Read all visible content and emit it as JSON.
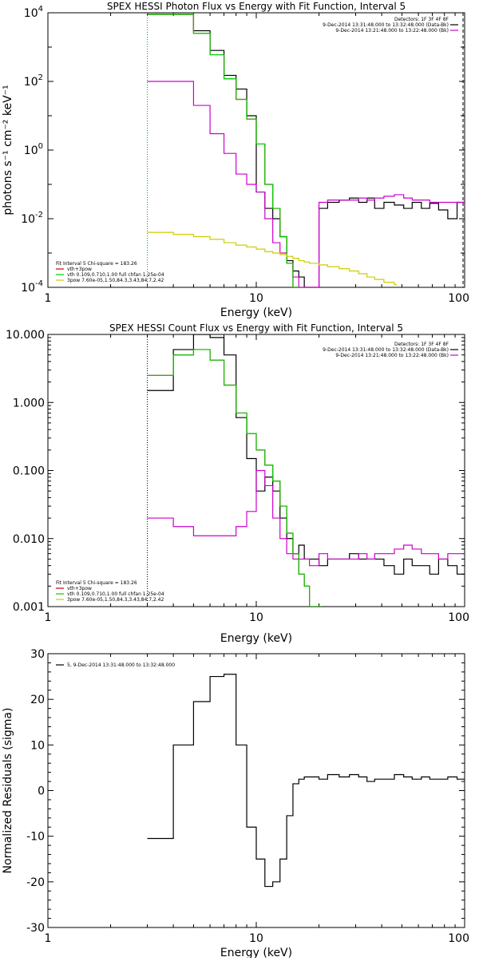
{
  "chart_data": [
    {
      "type": "line",
      "title": "SPEX HESSI Photon Flux vs Energy with Fit Function, Interval 5",
      "xlabel": "Energy (keV)",
      "ylabel": "photons s⁻¹ cm⁻² keV⁻¹",
      "xscale": "log",
      "yscale": "log",
      "xlim": [
        1,
        100
      ],
      "ylim": [
        0.0001,
        10000
      ],
      "x_ticks": [
        "1",
        "10",
        "100"
      ],
      "y_ticks": [
        {
          "base": "10",
          "exp": "-4"
        },
        {
          "base": "10",
          "exp": "-2"
        },
        {
          "base": "10",
          "exp": "0"
        },
        {
          "base": "10",
          "exp": "2"
        },
        {
          "base": "10",
          "exp": "4"
        }
      ],
      "legend_top_right": [
        {
          "text": "Detectors: 1F 3F 4F 8F",
          "color": "#000000",
          "line": false
        },
        {
          "text": "9-Dec-2014 13:31:48.000 to 13:32:48.000 (Data-Bk)",
          "color": "#000000",
          "line": true
        },
        {
          "text": "9-Dec-2014 13:21:48.000 to 13:22:48.000 (Bk)",
          "color": "#cc00cc",
          "line": true
        }
      ],
      "legend_bottom_left": [
        {
          "text": "Fit Interval 5   Chi-square = 183.26",
          "color": "#000000",
          "line": false
        },
        {
          "text": "vth+3pow",
          "color": "#cc0000",
          "line": true
        },
        {
          "text": "vth 0.109,0.710,1.00  full chfan 1.25e-04",
          "color": "#00cc00",
          "line": true
        },
        {
          "text": "3pow 7.60e-05,1.50,84.3,3.43,84.7,2.42",
          "color": "#cccc00",
          "line": true
        }
      ],
      "series": [
        {
          "name": "9-Dec-2014 13:31:48.000 to 13:32:48.000 (Data-Bk)",
          "color": "#000000",
          "x": [
            3,
            4,
            5,
            6,
            7,
            8,
            9,
            10,
            11,
            12,
            13,
            14,
            15,
            16,
            17,
            18,
            20,
            22,
            25,
            28,
            31,
            34,
            37,
            41,
            46,
            51,
            56,
            62,
            68,
            75,
            83,
            92,
            100
          ],
          "y": [
            9000,
            9000,
            3000,
            800,
            150,
            60,
            10,
            0.06,
            0.02,
            0.01,
            0.003,
            0.0006,
            0.0003,
            0.0002,
            0.0001,
            0.0001,
            0.02,
            0.03,
            0.035,
            0.04,
            0.03,
            0.04,
            0.02,
            0.03,
            0.025,
            0.02,
            0.03,
            0.02,
            0.028,
            0.018,
            0.01,
            0.03,
            0.03
          ]
        },
        {
          "name": "9-Dec-2014 13:21:48.000 to 13:22:48.000 (Bk)",
          "color": "#cc00cc",
          "x": [
            3,
            4,
            5,
            6,
            7,
            8,
            9,
            10,
            11,
            12,
            13,
            14,
            15,
            16,
            17,
            18,
            20,
            22,
            25,
            28,
            31,
            34,
            37,
            41,
            46,
            51,
            56,
            62,
            68,
            75,
            83,
            92,
            100
          ],
          "y": [
            100,
            100,
            20,
            3,
            0.8,
            0.2,
            0.1,
            0.06,
            0.01,
            0.002,
            0.001,
            0.0005,
            0.0002,
            0.0001,
            0.0001,
            0.0001,
            0.03,
            0.035,
            0.035,
            0.035,
            0.04,
            0.035,
            0.04,
            0.045,
            0.05,
            0.04,
            0.035,
            0.035,
            0.03,
            0.03,
            0.03,
            0.03,
            0.03
          ]
        },
        {
          "name": "vth+3pow",
          "color": "#cc0000",
          "x": [
            3,
            4,
            5,
            6,
            7,
            8,
            9,
            10,
            11,
            12,
            13,
            14,
            15,
            16
          ],
          "y": [
            9000,
            9000,
            2500,
            600,
            120,
            30,
            8,
            1.5,
            0.1,
            0.02,
            0.003,
            0.0005,
            0.0001,
            8e-05
          ]
        },
        {
          "name": "vth 0.109,0.710,1.00  full chfan 1.25e-04",
          "color": "#00cc00",
          "x": [
            3,
            4,
            5,
            6,
            7,
            8,
            9,
            10,
            11,
            12,
            13,
            14,
            15,
            16
          ],
          "y": [
            9000,
            9000,
            2500,
            600,
            120,
            30,
            8,
            1.5,
            0.1,
            0.02,
            0.003,
            0.0005,
            0.0001,
            8e-05
          ]
        },
        {
          "name": "3pow 7.60e-05,1.50,84.3,3.43,84.7,2.42",
          "color": "#cccc00",
          "x": [
            3,
            4,
            5,
            6,
            7,
            8,
            9,
            10,
            11,
            12,
            13,
            14,
            15,
            16,
            17,
            18,
            20,
            22,
            25,
            28,
            31,
            34,
            37,
            41,
            46
          ],
          "y": [
            0.004,
            0.0035,
            0.003,
            0.0025,
            0.002,
            0.0017,
            0.0015,
            0.0013,
            0.0011,
            0.001,
            0.0009,
            0.0008,
            0.0007,
            0.0006,
            0.00055,
            0.0005,
            0.00045,
            0.0004,
            0.00035,
            0.0003,
            0.00025,
            0.0002,
            0.00017,
            0.00014,
            0.00012
          ]
        }
      ]
    },
    {
      "type": "line",
      "title": "SPEX HESSI Count Flux vs Energy with Fit Function, Interval 5",
      "xlabel": "Energy (keV)",
      "ylabel": "",
      "xscale": "log",
      "yscale": "log",
      "xlim": [
        1,
        100
      ],
      "ylim": [
        0.001,
        10
      ],
      "x_ticks": [
        "1",
        "10",
        "100"
      ],
      "y_ticks": [
        "0.001",
        "0.010",
        "0.100",
        "1.000",
        "10.000"
      ],
      "legend_top_right": [
        {
          "text": "Detectors: 1F 3F 4F 8F",
          "color": "#000000",
          "line": false
        },
        {
          "text": "9-Dec-2014 13:31:48.000 to 13:32:48.000 (Data-Bk)",
          "color": "#000000",
          "line": true
        },
        {
          "text": "9-Dec-2014 13:21:48.000 to 13:22:48.000 (Bk)",
          "color": "#cc00cc",
          "line": true
        }
      ],
      "legend_bottom_left": [
        {
          "text": "Fit Interval 5   Chi-square = 183.26",
          "color": "#000000",
          "line": false
        },
        {
          "text": "vth+3pow",
          "color": "#cc0000",
          "line": true
        },
        {
          "text": "vth 0.109,0.710,1.00  full chfan 1.25e-04",
          "color": "#00cc00",
          "line": true
        },
        {
          "text": "3pow 7.60e-05,1.50,84.3,3.43,84.7,2.42",
          "color": "#cccc00",
          "line": true
        }
      ],
      "series": [
        {
          "name": "9-Dec-2014 13:31:48.000 to 13:32:48.000 (Data-Bk)",
          "color": "#000000",
          "x": [
            3,
            4,
            5,
            6,
            7,
            8,
            9,
            10,
            11,
            12,
            13,
            14,
            15,
            16,
            17,
            18,
            20,
            22,
            25,
            28,
            31,
            34,
            37,
            41,
            46,
            51,
            56,
            62,
            68,
            75,
            83,
            92,
            100
          ],
          "y": [
            1.5,
            6.0,
            10.0,
            9.0,
            5.0,
            0.6,
            0.15,
            0.05,
            0.08,
            0.05,
            0.02,
            0.01,
            0.006,
            0.008,
            0.005,
            0.005,
            0.004,
            0.005,
            0.005,
            0.006,
            0.005,
            0.005,
            0.005,
            0.004,
            0.003,
            0.005,
            0.004,
            0.004,
            0.003,
            0.005,
            0.004,
            0.003,
            0.003
          ]
        },
        {
          "name": "9-Dec-2014 13:21:48.000 to 13:22:48.000 (Bk)",
          "color": "#cc00cc",
          "x": [
            3,
            4,
            5,
            6,
            7,
            8,
            9,
            10,
            11,
            12,
            13,
            14,
            15,
            16,
            17,
            18,
            20,
            22,
            25,
            28,
            31,
            34,
            37,
            41,
            46,
            51,
            56,
            62,
            68,
            75,
            83,
            92,
            100
          ],
          "y": [
            0.02,
            0.015,
            0.011,
            0.011,
            0.011,
            0.015,
            0.025,
            0.1,
            0.06,
            0.02,
            0.01,
            0.006,
            0.005,
            0.005,
            0.005,
            0.004,
            0.006,
            0.005,
            0.005,
            0.005,
            0.006,
            0.005,
            0.006,
            0.006,
            0.007,
            0.008,
            0.007,
            0.006,
            0.006,
            0.005,
            0.006,
            0.006,
            0.006
          ]
        },
        {
          "name": "vth+3pow",
          "color": "#cc0000",
          "x": [
            3,
            4,
            5,
            6,
            7,
            8,
            9,
            10,
            11,
            12,
            13,
            14,
            15,
            16,
            17,
            18,
            20
          ],
          "y": [
            2.5,
            5.0,
            6.0,
            4.2,
            1.8,
            0.7,
            0.35,
            0.2,
            0.12,
            0.07,
            0.03,
            0.012,
            0.006,
            0.003,
            0.002,
            0.001,
            0.001
          ]
        },
        {
          "name": "vth 0.109,0.710,1.00  full chfan 1.25e-04",
          "color": "#00cc00",
          "x": [
            3,
            4,
            5,
            6,
            7,
            8,
            9,
            10,
            11,
            12,
            13,
            14,
            15,
            16,
            17,
            18,
            20
          ],
          "y": [
            2.5,
            5.0,
            6.0,
            4.2,
            1.8,
            0.7,
            0.35,
            0.2,
            0.12,
            0.07,
            0.03,
            0.012,
            0.006,
            0.003,
            0.002,
            0.001,
            0.001
          ]
        }
      ]
    },
    {
      "type": "line",
      "title": "",
      "xlabel": "Energy (keV)",
      "ylabel": "Normalized Residuals (sigma)",
      "xscale": "log",
      "yscale": "linear",
      "xlim": [
        1,
        100
      ],
      "ylim": [
        -30,
        30
      ],
      "x_ticks": [
        "1",
        "10",
        "100"
      ],
      "y_ticks": [
        "-30",
        "-20",
        "-10",
        "0",
        "10",
        "20",
        "30"
      ],
      "legend_top_left": [
        {
          "text": "5, 9-Dec-2014 13:31:48.000 to 13:32:48.000",
          "color": "#000000",
          "line": true
        }
      ],
      "series": [
        {
          "name": "5, 9-Dec-2014 13:31:48.000 to 13:32:48.000",
          "color": "#000000",
          "x": [
            3,
            4,
            5,
            6,
            7,
            8,
            9,
            10,
            11,
            12,
            13,
            14,
            15,
            16,
            17,
            18,
            20,
            22,
            25,
            28,
            31,
            34,
            37,
            41,
            46,
            51,
            56,
            62,
            68,
            75,
            83,
            92,
            100
          ],
          "y": [
            -10.5,
            10,
            19.5,
            25,
            25.5,
            10,
            -8,
            -15,
            -21,
            -20,
            -15,
            -5.5,
            1.5,
            2.5,
            3,
            3,
            2.5,
            3.5,
            3,
            3.5,
            3,
            2,
            2.5,
            2.5,
            3.5,
            3,
            2.5,
            3,
            2.5,
            2.5,
            3,
            2.5,
            2.5
          ]
        }
      ]
    }
  ]
}
